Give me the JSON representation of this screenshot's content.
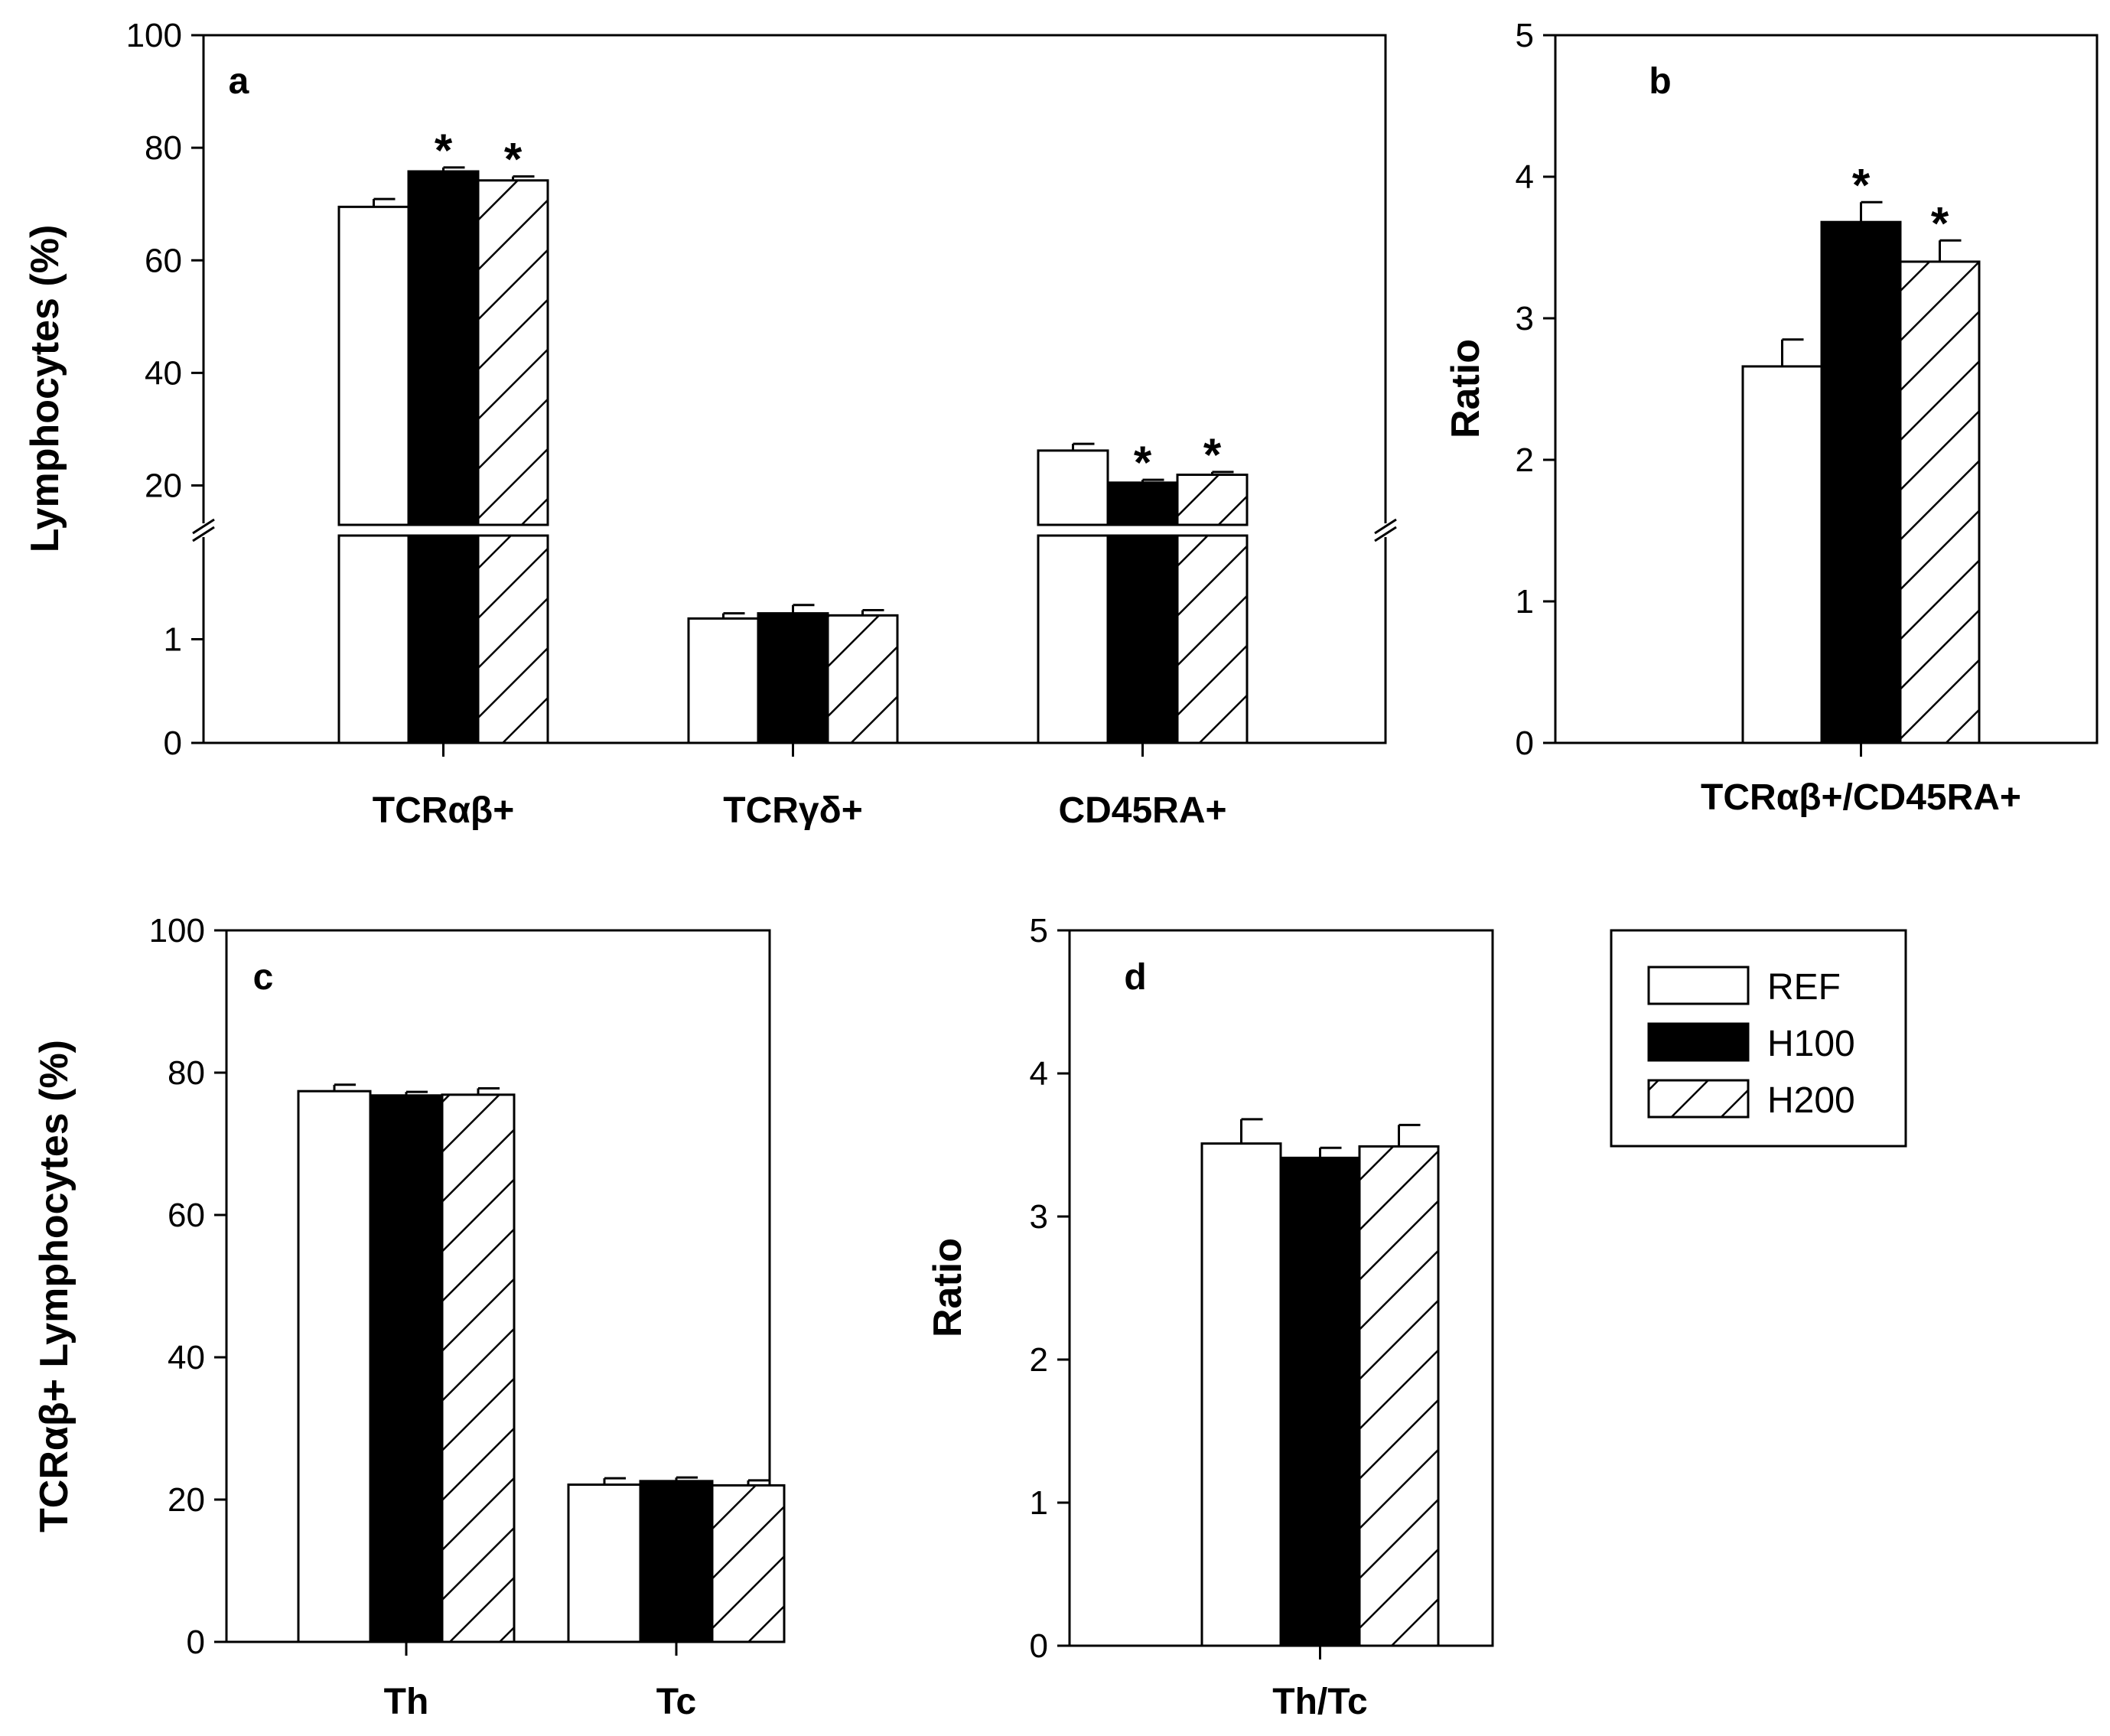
{
  "chart_data": [
    {
      "panel": "a",
      "type": "bar",
      "ylabel": "Lymphocytes (%)",
      "axis_break": true,
      "lower_ticks": [
        0,
        1
      ],
      "upper_ticks": [
        20,
        40,
        60,
        80,
        100
      ],
      "categories": [
        "TCRαβ+",
        "TCRγδ+",
        "CD45RA+"
      ],
      "series": [
        {
          "name": "REF",
          "values": [
            69.5,
            1.2,
            26.2
          ],
          "errors": [
            1.4,
            0.05,
            1.2
          ]
        },
        {
          "name": "H100",
          "values": [
            75.8,
            1.25,
            20.5
          ],
          "errors": [
            0.7,
            0.08,
            0.5
          ]
        },
        {
          "name": "H200",
          "values": [
            74.2,
            1.23,
            21.9
          ],
          "errors": [
            0.7,
            0.05,
            0.5
          ]
        }
      ],
      "significance": [
        [
          "",
          "",
          ""
        ],
        [
          "*",
          "",
          "*"
        ],
        [
          "*",
          "",
          "*"
        ]
      ]
    },
    {
      "panel": "b",
      "type": "bar",
      "ylabel": "Ratio",
      "ylim": [
        0,
        5
      ],
      "yticks": [
        0,
        1,
        2,
        3,
        4,
        5
      ],
      "categories": [
        "TCRαβ+/CD45RA+"
      ],
      "series": [
        {
          "name": "REF",
          "values": [
            2.66
          ],
          "errors": [
            0.19
          ]
        },
        {
          "name": "H100",
          "values": [
            3.68
          ],
          "errors": [
            0.14
          ]
        },
        {
          "name": "H200",
          "values": [
            3.4
          ],
          "errors": [
            0.15
          ]
        }
      ],
      "significance": [
        [
          ""
        ],
        [
          "*"
        ],
        [
          "*"
        ]
      ]
    },
    {
      "panel": "c",
      "type": "bar",
      "ylabel": "TCRαβ+ Lymphocytes (%)",
      "ylim": [
        0,
        100
      ],
      "yticks": [
        0,
        20,
        40,
        60,
        80,
        100
      ],
      "categories": [
        "Th",
        "Tc"
      ],
      "series": [
        {
          "name": "REF",
          "values": [
            77.4,
            22.1
          ],
          "errors": [
            0.9,
            0.9
          ]
        },
        {
          "name": "H100",
          "values": [
            76.8,
            22.6
          ],
          "errors": [
            0.5,
            0.5
          ]
        },
        {
          "name": "H200",
          "values": [
            76.9,
            22.0
          ],
          "errors": [
            0.9,
            0.7
          ]
        }
      ],
      "significance": [
        [
          "",
          ""
        ],
        [
          "",
          ""
        ],
        [
          "",
          ""
        ]
      ]
    },
    {
      "panel": "d",
      "type": "bar",
      "ylabel": "Ratio",
      "ylim": [
        0,
        5
      ],
      "yticks": [
        0,
        1,
        2,
        3,
        4,
        5
      ],
      "categories": [
        "Th/Tc"
      ],
      "series": [
        {
          "name": "REF",
          "values": [
            3.51
          ],
          "errors": [
            0.17
          ]
        },
        {
          "name": "H100",
          "values": [
            3.41
          ],
          "errors": [
            0.07
          ]
        },
        {
          "name": "H200",
          "values": [
            3.49
          ],
          "errors": [
            0.15
          ]
        }
      ],
      "significance": [
        [
          ""
        ],
        [
          ""
        ],
        [
          ""
        ]
      ]
    }
  ],
  "legend": {
    "entries": [
      {
        "name": "REF",
        "fill": "white"
      },
      {
        "name": "H100",
        "fill": "black"
      },
      {
        "name": "H200",
        "fill": "hatch"
      }
    ]
  },
  "colors": {
    "ref": "#ffffff",
    "h100": "#000000",
    "stroke": "#000000"
  }
}
